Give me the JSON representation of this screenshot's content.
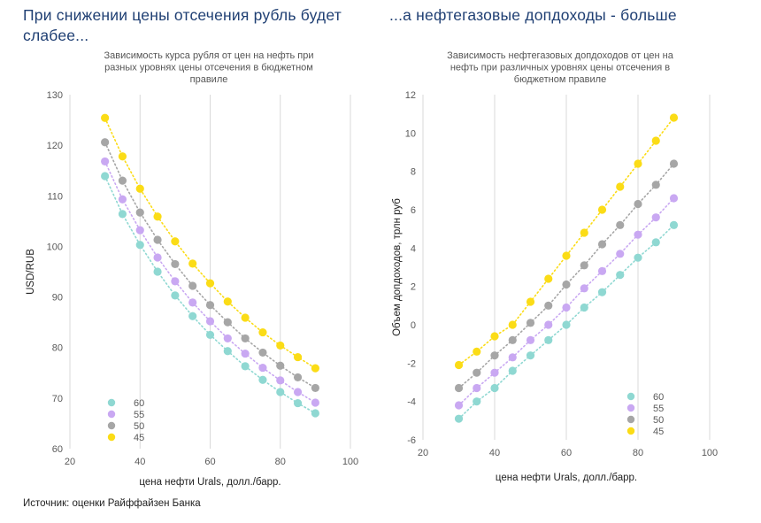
{
  "headline_left": "При снижении цены отсечения рубль будет слабее...",
  "headline_right": "...а нефтегазовые допдоходы - больше",
  "source": "Источник: оценки Райффайзен Банка",
  "colors": {
    "60": "#8fd8d2",
    "55": "#c9a8f2",
    "50": "#a6a6a6",
    "45": "#fbdc16"
  },
  "chart_data": [
    {
      "type": "scatter",
      "title": "Зависимость курса рубля от цен на нефть при разных уровнях цены отсечения в бюджетном правиле",
      "title_lines": [
        "Зависимость курса рубля от цен на нефть при",
        "разных уровнях цены отсечения в бюджетном",
        "правиле"
      ],
      "xlabel": "цена нефти Urals, долл./барр.",
      "ylabel": "USD/RUB",
      "xlim": [
        20,
        100
      ],
      "ylim": [
        60,
        130
      ],
      "xticks": [
        "20",
        "40",
        "60",
        "80",
        "100"
      ],
      "yticks": [
        "60",
        "70",
        "80",
        "90",
        "100",
        "110",
        "120",
        "130"
      ],
      "x": [
        30,
        35,
        40,
        45,
        50,
        55,
        60,
        65,
        70,
        75,
        80,
        85,
        90
      ],
      "legend_position": "bottom-left",
      "series": [
        {
          "name": "60",
          "values": [
            113.9,
            106.4,
            100.3,
            95.0,
            90.3,
            86.2,
            82.5,
            79.3,
            76.3,
            73.6,
            71.2,
            69.0,
            67.0
          ]
        },
        {
          "name": "55",
          "values": [
            116.8,
            109.3,
            103.2,
            97.8,
            93.1,
            88.9,
            85.2,
            81.8,
            78.8,
            76.0,
            73.5,
            71.2,
            69.1
          ]
        },
        {
          "name": "50",
          "values": [
            120.6,
            113.0,
            106.7,
            101.3,
            96.5,
            92.2,
            88.4,
            85.0,
            81.8,
            79.0,
            76.4,
            74.1,
            72.0
          ]
        },
        {
          "name": "45",
          "values": [
            125.4,
            117.8,
            111.4,
            105.9,
            101.0,
            96.6,
            92.7,
            89.1,
            85.9,
            83.0,
            80.4,
            78.1,
            75.9
          ]
        }
      ]
    },
    {
      "type": "scatter",
      "title": "Зависимость нефтегазовых допдоходов от цен на нефть при различных уровнях цены отсечения в бюджетном правиле",
      "title_lines": [
        "Зависимость нефтегазовых допдоходов от  цен на",
        "нефть при различных уровнях цены отсечения в",
        "бюджетном правиле"
      ],
      "xlabel": "цена нефти Urals, долл./барр.",
      "ylabel": "Объем допдоходов, трлн руб",
      "xlim": [
        20,
        100
      ],
      "ylim": [
        -6,
        12
      ],
      "xticks": [
        "20",
        "40",
        "60",
        "80",
        "100"
      ],
      "yticks": [
        "-6",
        "-4",
        "-2",
        "0",
        "2",
        "4",
        "6",
        "8",
        "10",
        "12"
      ],
      "x": [
        30,
        35,
        40,
        45,
        50,
        55,
        60,
        65,
        70,
        75,
        80,
        85,
        90
      ],
      "legend_position": "bottom-right",
      "series": [
        {
          "name": "60",
          "values": [
            -4.9,
            -4.0,
            -3.3,
            -2.4,
            -1.6,
            -0.8,
            0.0,
            0.9,
            1.7,
            2.6,
            3.5,
            4.3,
            5.2
          ]
        },
        {
          "name": "55",
          "values": [
            -4.2,
            -3.3,
            -2.5,
            -1.7,
            -0.8,
            0.0,
            0.9,
            1.9,
            2.8,
            3.7,
            4.7,
            5.6,
            6.6
          ]
        },
        {
          "name": "50",
          "values": [
            -3.3,
            -2.5,
            -1.6,
            -0.8,
            0.1,
            1.0,
            2.1,
            3.1,
            4.2,
            5.2,
            6.3,
            7.3,
            8.4
          ]
        },
        {
          "name": "45",
          "values": [
            -2.1,
            -1.4,
            -0.6,
            0.0,
            1.2,
            2.4,
            3.6,
            4.8,
            6.0,
            7.2,
            8.4,
            9.6,
            10.8
          ]
        }
      ]
    }
  ]
}
